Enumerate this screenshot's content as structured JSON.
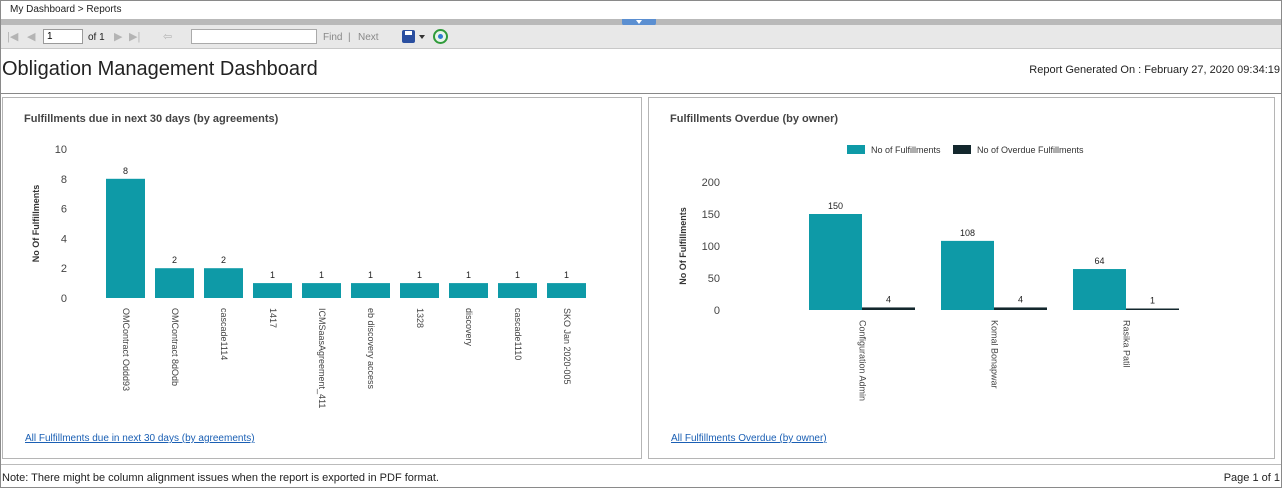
{
  "breadcrumb": {
    "text": "My Dashboard > Reports"
  },
  "toolbar": {
    "page_value": "1",
    "page_of": "of 1",
    "find_label": "Find",
    "separator": "|",
    "next_label": "Next",
    "icons": [
      "first-page-icon",
      "previous-page-icon",
      "next-page-icon",
      "last-page-icon",
      "back-icon",
      "save-icon",
      "refresh-icon"
    ]
  },
  "report": {
    "title": "Obligation Management Dashboard",
    "generated_on": "Report Generated On : February 27, 2020 09:34:19"
  },
  "colors": {
    "teal": "#0e9aa7",
    "dark": "#13272d",
    "link": "#1a5fb4"
  },
  "left_panel": {
    "title": "Fulfillments due in next 30 days (by agreements)",
    "link": "All Fulfillments due in next 30 days (by agreements)"
  },
  "right_panel": {
    "title": "Fulfillments Overdue (by owner)",
    "link": "All Fulfillments Overdue (by owner)"
  },
  "footer": {
    "note": "Note: There might be column alignment issues when the report is exported in PDF format.",
    "page": "Page 1 of 1"
  },
  "chart_data": [
    {
      "type": "bar",
      "title": "Fulfillments due in next 30 days (by agreements)",
      "ylabel": "No Of Fulfillments",
      "ylim": [
        0,
        10
      ],
      "yticks": [
        0,
        2,
        4,
        6,
        8,
        10
      ],
      "categories": [
        "OMContract Oddd93",
        "OMContract 8dOdb",
        "cascade1114",
        "1417",
        "ICMSaasAgreement_411",
        "eb discovery access",
        "1328",
        "discovery",
        "cascade1110",
        "SKO Jan 2020-005"
      ],
      "series": [
        {
          "values": [
            8,
            2,
            2,
            1,
            1,
            1,
            1,
            1,
            1,
            1
          ]
        }
      ],
      "data_labels": true,
      "grid": false
    },
    {
      "type": "bar",
      "title": "Fulfillments Overdue (by owner)",
      "ylabel": "No Of Fulfillments",
      "ylim": [
        0,
        200
      ],
      "yticks": [
        0,
        50,
        100,
        150,
        200
      ],
      "categories": [
        "Configuration Admin",
        "Komal Bonapwar",
        "Rasika Patil"
      ],
      "series": [
        {
          "name": "No of Fulfillments",
          "values": [
            150,
            108,
            64
          ]
        },
        {
          "name": "No of Overdue Fulfillments",
          "values": [
            4,
            4,
            1
          ]
        }
      ],
      "legend": "top",
      "data_labels": true,
      "grid": false
    }
  ]
}
